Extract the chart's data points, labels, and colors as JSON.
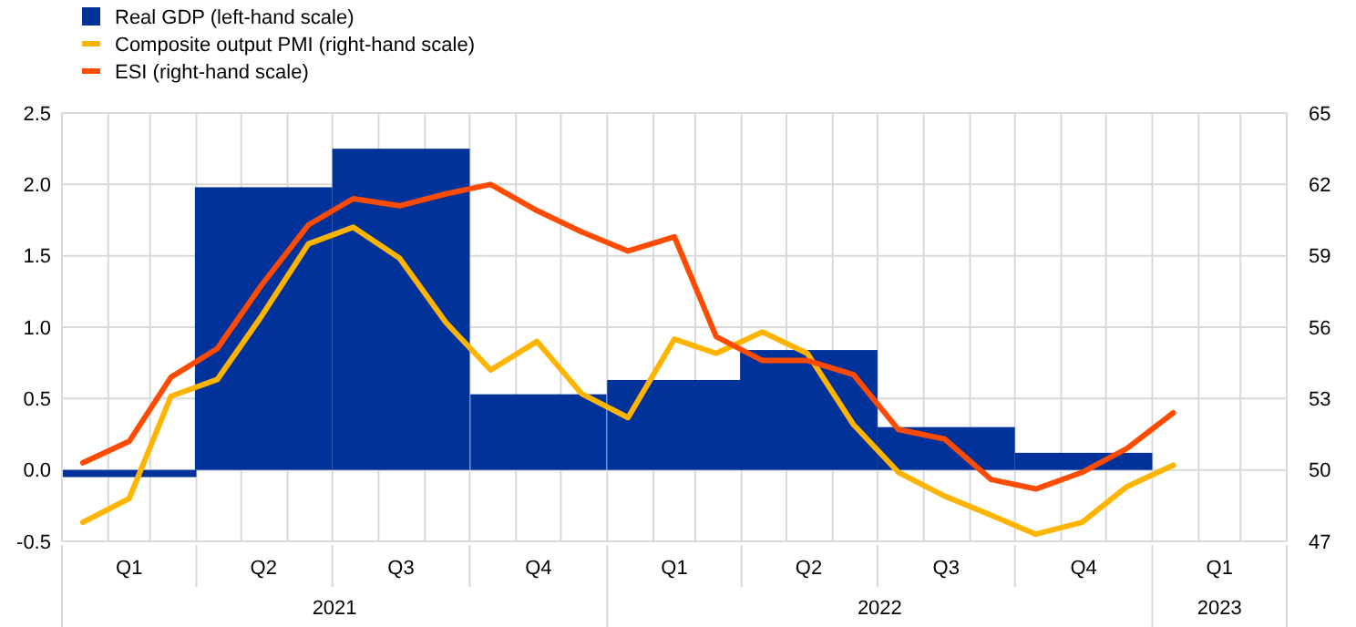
{
  "chart_data": {
    "type": "bar",
    "legend": "top left",
    "grid": true,
    "xlim": [
      "2021-01-01",
      "2023-04-01"
    ],
    "xticks": [
      {
        "value": "2021-01-01",
        "label": null
      },
      {
        "value": "2021-02-01",
        "label": null
      },
      {
        "value": "2021-02-15",
        "label": "Q1"
      },
      {
        "value": "2021-03-01",
        "label": null
      },
      {
        "value": "2021-04-01",
        "label": null
      },
      {
        "value": "2021-05-01",
        "label": null
      },
      {
        "value": "2021-05-16",
        "label": "Q2"
      },
      {
        "value": "2021-06-01",
        "label": null
      },
      {
        "value": "2021-07-01",
        "label": null
      },
      {
        "value": "2021-08-01",
        "label": null
      },
      {
        "value": "2021-08-16",
        "label": "Q3"
      },
      {
        "value": "2021-09-01",
        "label": null
      },
      {
        "value": "2021-10-01",
        "label": null
      },
      {
        "value": "2021-11-01",
        "label": null
      },
      {
        "value": "2021-11-16",
        "label": "Q4"
      },
      {
        "value": "2021-12-01",
        "label": null
      },
      {
        "value": "2022-01-01",
        "label": null
      },
      {
        "value": "2022-02-01",
        "label": null
      },
      {
        "value": "2022-02-15",
        "label": "Q1"
      },
      {
        "value": "2022-03-01",
        "label": null
      },
      {
        "value": "2022-04-01",
        "label": null
      },
      {
        "value": "2022-05-01",
        "label": null
      },
      {
        "value": "2022-05-16",
        "label": "Q2"
      },
      {
        "value": "2022-06-01",
        "label": null
      },
      {
        "value": "2022-07-01",
        "label": null
      },
      {
        "value": "2022-08-01",
        "label": null
      },
      {
        "value": "2022-08-16",
        "label": "Q3"
      },
      {
        "value": "2022-09-01",
        "label": null
      },
      {
        "value": "2022-10-01",
        "label": null
      },
      {
        "value": "2022-11-01",
        "label": null
      },
      {
        "value": "2022-11-16",
        "label": "Q4"
      },
      {
        "value": "2022-12-01",
        "label": null
      },
      {
        "value": "2023-01-01",
        "label": null
      },
      {
        "value": "2023-02-01",
        "label": null
      },
      {
        "value": "2023-02-15",
        "label": "Q1"
      },
      {
        "value": "2023-03-01",
        "label": null
      },
      {
        "value": "2023-04-01",
        "label": null
      }
    ],
    "ylim": [
      -0.5,
      2.5
    ],
    "yticks": [
      {
        "value": -0.5,
        "label": "-0.5"
      },
      {
        "value": 0,
        "label": "0.0"
      },
      {
        "value": 0.5,
        "label": "0.5"
      },
      {
        "value": 1,
        "label": "1.0"
      },
      {
        "value": 1.5,
        "label": "1.5"
      },
      {
        "value": 2,
        "label": "2.0"
      },
      {
        "value": 2.5,
        "label": "2.5"
      }
    ],
    "y2lim": [
      47,
      65
    ],
    "y2ticks": [
      47,
      50,
      53,
      56,
      59,
      62,
      65
    ],
    "annotations": [
      "2021",
      "2022",
      "2023"
    ],
    "series": [
      {
        "name": "Real GDP (left-hand scale)",
        "color": "#003299",
        "x": [
          "2021-02-15",
          "2021-05-16",
          "2021-08-16",
          "2021-11-16",
          "2022-02-15",
          "2022-05-16",
          "2022-08-16",
          "2022-11-16"
        ],
        "values": [
          -0.05,
          1.98,
          2.25,
          0.53,
          0.63,
          0.84,
          0.3,
          0.12
        ]
      },
      {
        "name": "Composite output PMI (right-hand scale)",
        "type": "line",
        "axis": "y2",
        "color": "#ffb400",
        "x": [
          "2021-01-15",
          "2021-02-15",
          "2021-03-15",
          "2021-04-15",
          "2021-05-15",
          "2021-06-15",
          "2021-07-15",
          "2021-08-15",
          "2021-09-15",
          "2021-10-15",
          "2021-11-15",
          "2021-12-15",
          "2022-01-15",
          "2022-02-15",
          "2022-03-15",
          "2022-04-15",
          "2022-05-15",
          "2022-06-15",
          "2022-07-15",
          "2022-08-15",
          "2022-09-15",
          "2022-10-15",
          "2022-11-15",
          "2022-12-15",
          "2023-01-15"
        ],
        "values": [
          47.8,
          48.8,
          53.1,
          53.8,
          56.5,
          59.5,
          60.2,
          58.9,
          56.2,
          54.2,
          55.4,
          53.2,
          52.2,
          55.5,
          54.9,
          55.8,
          54.9,
          51.9,
          49.9,
          48.9,
          48.1,
          47.3,
          47.8,
          49.3,
          50.2
        ]
      },
      {
        "name": "ESI (right-hand scale)",
        "type": "line",
        "axis": "y2",
        "color": "#ff4b00",
        "x": [
          "2021-01-15",
          "2021-02-15",
          "2021-03-15",
          "2021-04-15",
          "2021-05-15",
          "2021-06-15",
          "2021-07-15",
          "2021-08-15",
          "2021-09-15",
          "2021-10-15",
          "2021-11-15",
          "2021-12-15",
          "2022-01-15",
          "2022-02-15",
          "2022-03-15",
          "2022-04-15",
          "2022-05-15",
          "2022-06-15",
          "2022-07-15",
          "2022-08-15",
          "2022-09-15",
          "2022-10-15",
          "2022-11-15",
          "2022-12-15",
          "2023-01-15"
        ],
        "values": [
          50.3,
          51.2,
          53.9,
          55.1,
          57.8,
          60.3,
          61.4,
          61.1,
          61.6,
          62.0,
          60.9,
          60.0,
          59.2,
          59.8,
          55.6,
          54.6,
          54.6,
          54.0,
          51.7,
          51.3,
          49.6,
          49.2,
          49.9,
          50.9,
          52.4
        ]
      }
    ]
  }
}
